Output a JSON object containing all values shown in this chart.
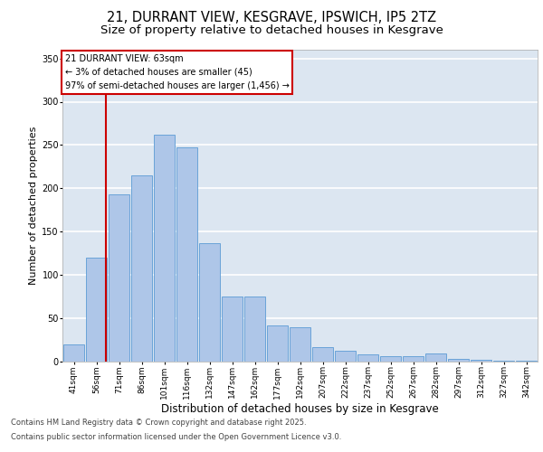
{
  "title_line1": "21, DURRANT VIEW, KESGRAVE, IPSWICH, IP5 2TZ",
  "title_line2": "Size of property relative to detached houses in Kesgrave",
  "xlabel": "Distribution of detached houses by size in Kesgrave",
  "ylabel": "Number of detached properties",
  "categories": [
    "41sqm",
    "56sqm",
    "71sqm",
    "86sqm",
    "101sqm",
    "116sqm",
    "132sqm",
    "147sqm",
    "162sqm",
    "177sqm",
    "192sqm",
    "207sqm",
    "222sqm",
    "237sqm",
    "252sqm",
    "267sqm",
    "282sqm",
    "297sqm",
    "312sqm",
    "327sqm",
    "342sqm"
  ],
  "values": [
    20,
    120,
    193,
    215,
    262,
    247,
    137,
    75,
    75,
    42,
    40,
    17,
    13,
    8,
    6,
    6,
    9,
    3,
    2,
    1,
    1
  ],
  "bar_color": "#aec6e8",
  "bar_edge_color": "#5b9bd5",
  "vline_color": "#cc0000",
  "vline_index": 1,
  "annotation_box_text": "21 DURRANT VIEW: 63sqm\n← 3% of detached houses are smaller (45)\n97% of semi-detached houses are larger (1,456) →",
  "annotation_box_color": "#cc0000",
  "annotation_bg": "#ffffff",
  "ylim": [
    0,
    360
  ],
  "yticks": [
    0,
    50,
    100,
    150,
    200,
    250,
    300,
    350
  ],
  "background_color": "#dce6f1",
  "grid_color": "#ffffff",
  "footer_line1": "Contains HM Land Registry data © Crown copyright and database right 2025.",
  "footer_line2": "Contains public sector information licensed under the Open Government Licence v3.0.",
  "title_fontsize": 10.5,
  "subtitle_fontsize": 9.5,
  "tick_fontsize": 6.5,
  "ylabel_fontsize": 8,
  "xlabel_fontsize": 8.5,
  "annot_fontsize": 7,
  "footer_fontsize": 6
}
